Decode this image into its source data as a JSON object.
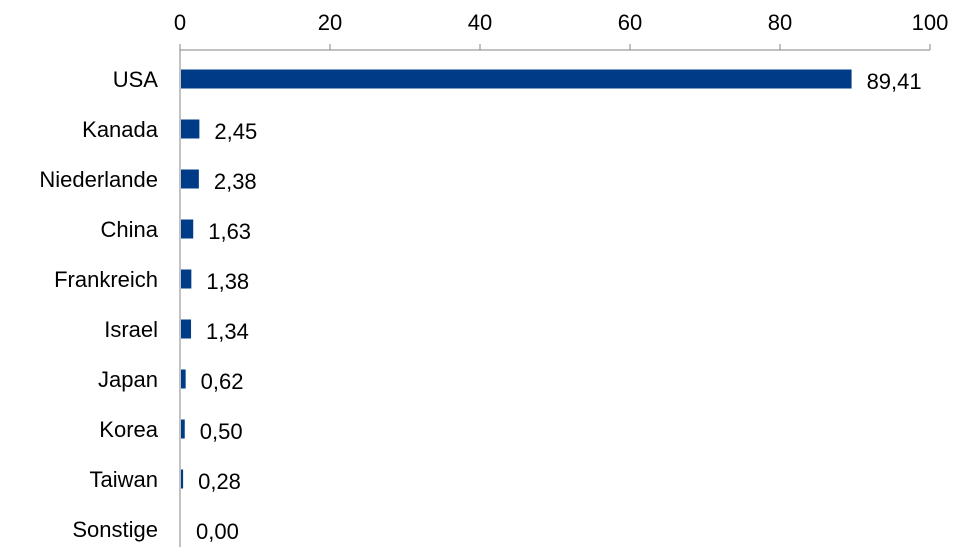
{
  "chart_data": {
    "type": "bar",
    "orientation": "horizontal",
    "title": "",
    "xlabel": "",
    "ylabel": "",
    "categories": [
      "USA",
      "Kanada",
      "Niederlande",
      "China",
      "Frankreich",
      "Israel",
      "Japan",
      "Korea",
      "Taiwan",
      "Sonstige"
    ],
    "values": [
      89.41,
      2.45,
      2.38,
      1.63,
      1.38,
      1.34,
      0.62,
      0.5,
      0.28,
      0.0
    ],
    "value_labels": [
      "89,41",
      "2,45",
      "2,38",
      "1,63",
      "1,38",
      "1,34",
      "0,62",
      "0,50",
      "0,28",
      "0,00"
    ],
    "xlim": [
      0,
      100
    ],
    "x_ticks": [
      0,
      20,
      40,
      60,
      80,
      100
    ],
    "x_tick_labels": [
      "0",
      "20",
      "40",
      "60",
      "80",
      "100"
    ],
    "x_axis_position": "top",
    "grid": false,
    "legend": "none",
    "bar_color": "#003B87"
  }
}
